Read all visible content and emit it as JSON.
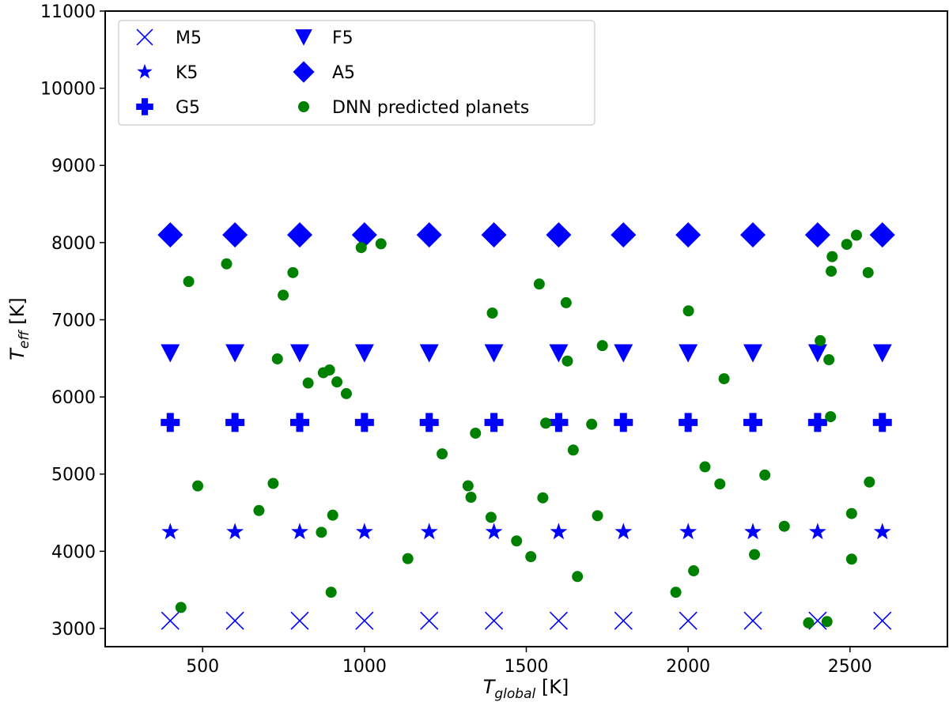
{
  "chart_data": {
    "type": "scatter",
    "title": "",
    "xlabel": {
      "main": "T",
      "sub": "global",
      "unit": " [K]"
    },
    "ylabel": {
      "main": "T",
      "sub": "eff",
      "unit": " [K]"
    },
    "xlim": [
      199,
      2801
    ],
    "ylim": [
      2764,
      11000
    ],
    "xticks": [
      500,
      1000,
      1500,
      2000,
      2500
    ],
    "yticks": [
      3000,
      4000,
      5000,
      6000,
      7000,
      8000,
      9000,
      10000,
      11000
    ],
    "grid": false,
    "legend_position": "top-left",
    "reference_x": [
      400,
      600,
      800,
      1000,
      1200,
      1400,
      1600,
      1800,
      2000,
      2200,
      2400,
      2600
    ],
    "series": [
      {
        "name": "M5",
        "marker": "x",
        "color": "#0000ff",
        "y": 3100
      },
      {
        "name": "K5",
        "marker": "star",
        "color": "#0000ff",
        "y": 4250
      },
      {
        "name": "G5",
        "marker": "plus",
        "color": "#0000ff",
        "y": 5670
      },
      {
        "name": "F5",
        "marker": "triangle-down",
        "color": "#0000ff",
        "y": 6570
      },
      {
        "name": "A5",
        "marker": "diamond",
        "color": "#0000ff",
        "y": 8100
      },
      {
        "name": "DNN predicted planets",
        "marker": "circle",
        "color": "#008000",
        "points": [
          [
            457,
            7495
          ],
          [
            574,
            7724
          ],
          [
            779,
            7611
          ],
          [
            749,
            7319
          ],
          [
            990,
            7935
          ],
          [
            1051,
            7984
          ],
          [
            731,
            6493
          ],
          [
            826,
            6180
          ],
          [
            873,
            6314
          ],
          [
            892,
            6349
          ],
          [
            915,
            6194
          ],
          [
            944,
            6043
          ],
          [
            485,
            4847
          ],
          [
            718,
            4879
          ],
          [
            674,
            4528
          ],
          [
            902,
            4468
          ],
          [
            867,
            4246
          ],
          [
            1134,
            3905
          ],
          [
            897,
            3469
          ],
          [
            433,
            3272
          ],
          [
            1540,
            7463
          ],
          [
            1623,
            7221
          ],
          [
            1395,
            7087
          ],
          [
            2001,
            7115
          ],
          [
            1735,
            6665
          ],
          [
            1627,
            6465
          ],
          [
            1560,
            5660
          ],
          [
            1702,
            5646
          ],
          [
            1343,
            5530
          ],
          [
            1240,
            5262
          ],
          [
            1645,
            5312
          ],
          [
            2052,
            5094
          ],
          [
            1320,
            4848
          ],
          [
            1329,
            4700
          ],
          [
            1551,
            4693
          ],
          [
            1391,
            4440
          ],
          [
            1720,
            4461
          ],
          [
            1470,
            4134
          ],
          [
            1514,
            3930
          ],
          [
            1658,
            3673
          ],
          [
            2017,
            3747
          ],
          [
            1962,
            3469
          ],
          [
            2520,
            8096
          ],
          [
            2490,
            7977
          ],
          [
            2445,
            7818
          ],
          [
            2442,
            7629
          ],
          [
            2556,
            7611
          ],
          [
            2408,
            6729
          ],
          [
            2435,
            6482
          ],
          [
            2111,
            6236
          ],
          [
            2440,
            5744
          ],
          [
            2098,
            4872
          ],
          [
            2237,
            4988
          ],
          [
            2560,
            4897
          ],
          [
            2505,
            4489
          ],
          [
            2297,
            4324
          ],
          [
            2205,
            3958
          ],
          [
            2505,
            3898
          ],
          [
            2372,
            3072
          ],
          [
            2429,
            3089
          ]
        ]
      }
    ]
  }
}
